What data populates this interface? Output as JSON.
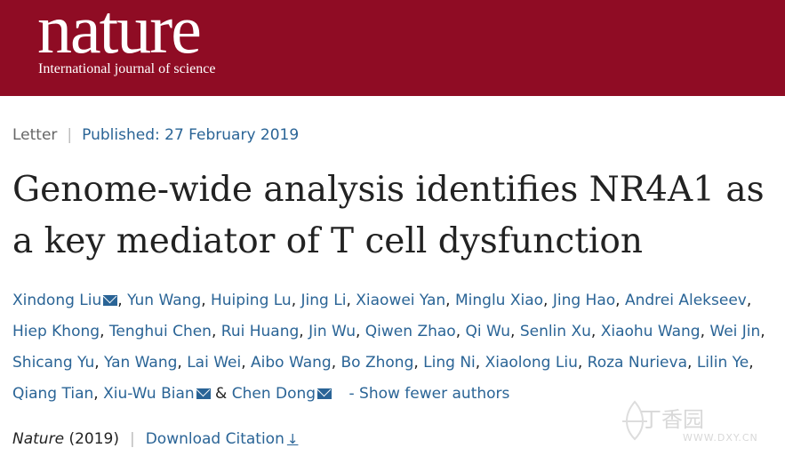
{
  "header": {
    "logo": "nature",
    "tagline": "International journal of science",
    "bg_color": "#8f0c24"
  },
  "article": {
    "type": "Letter",
    "published": "Published: 27 February 2019",
    "title": "Genome-wide analysis identifies NR4A1 as a key mediator of T cell dysfunction",
    "authors_line1": [
      "Xindong Liu",
      "Yun Wang",
      "Huiping Lu",
      "Jing Li",
      "Xiaowei Yan",
      "Minglu Xiao",
      "Jing Hao",
      "Andrei Alekseev"
    ],
    "authors_line2": [
      "Hiep Khong",
      "Tenghui Chen",
      "Rui Huang",
      "Jin Wu",
      "Qiwen Zhao",
      "Qi Wu",
      "Senlin Xu",
      "Xiaohu Wang",
      "Wei Jin"
    ],
    "authors_line3": [
      "Shicang Yu",
      "Yan Wang",
      "Lai Wei",
      "Aibo Wang",
      "Bo Zhong",
      "Ling Ni",
      "Xiaolong Liu",
      "Roza Nurieva",
      "Lilin Ye"
    ],
    "authors_line4": [
      "Qiang Tian",
      "Xiu-Wu Bian",
      "Chen Dong"
    ],
    "show_fewer": "- Show fewer authors",
    "journal": "Nature",
    "year": "(2019)",
    "download_citation": "Download Citation"
  },
  "watermark": {
    "text": "丁香园",
    "url_text": "WWW.DXY.CN"
  },
  "colors": {
    "link": "#2a6496",
    "title": "#222222"
  }
}
